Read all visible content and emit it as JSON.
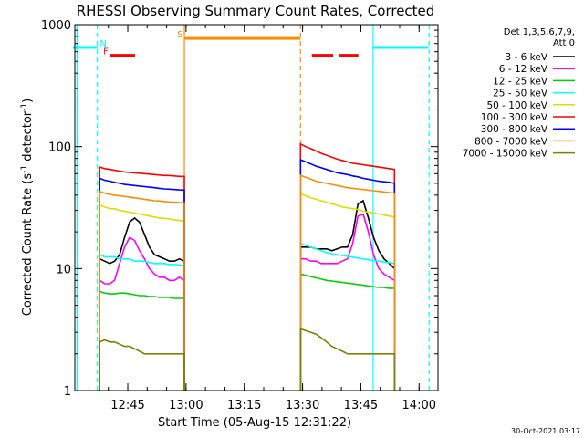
{
  "chart_data": {
    "type": "line",
    "title": "RHESSI Observing Summary Count Rates, Corrected",
    "xlabel": "Start Time (05-Aug-15 12:31:22)",
    "ylabel_main": "Corrected Count Rate (s",
    "ylabel_sup1": "-1",
    "ylabel_mid": " detector",
    "ylabel_sup2": "-1",
    "ylabel_end": ")",
    "ylim": [
      1,
      1000
    ],
    "y_scale": "log",
    "xlim_minutes": [
      0,
      93.5
    ],
    "x_ticks": [
      {
        "label": "12:45",
        "min": 13.63
      },
      {
        "label": "13:00",
        "min": 28.63
      },
      {
        "label": "13:15",
        "min": 43.63
      },
      {
        "label": "13:30",
        "min": 58.63
      },
      {
        "label": "13:45",
        "min": 73.63
      },
      {
        "label": "14:00",
        "min": 88.63
      }
    ],
    "y_ticks": [
      {
        "label": "1",
        "v": 1
      },
      {
        "label": "10",
        "v": 10
      },
      {
        "label": "100",
        "v": 100
      },
      {
        "label": "1000",
        "v": 1000
      }
    ],
    "legend_header": [
      "Det 1,3,5,6,7,9,",
      "Att 0"
    ],
    "legend_placement": "right",
    "timestamp": "30-Oct-2021 03:17",
    "series": [
      {
        "name": "3 - 6 keV",
        "color": "#000000",
        "seg1": [
          12,
          11.5,
          11,
          11.5,
          13,
          18,
          24,
          26,
          24,
          19,
          15,
          13,
          12.5,
          12,
          11.5,
          11.5,
          12,
          11.5
        ],
        "seg2": [
          15,
          15,
          15,
          14.5,
          14.5,
          14.5,
          14,
          14.5,
          15,
          15,
          19,
          34,
          36,
          26,
          18,
          14,
          12,
          11,
          10
        ]
      },
      {
        "name": "6 - 12 keV",
        "color": "#ff00ff",
        "seg1": [
          8,
          7.5,
          7.5,
          8,
          11,
          15,
          18,
          17,
          14,
          12,
          10,
          9,
          8.5,
          8.5,
          8,
          8,
          8.5,
          8
        ],
        "seg2": [
          12,
          12,
          11.5,
          11.5,
          11,
          11,
          11,
          11,
          11.5,
          12,
          16,
          27,
          28,
          20,
          13,
          10,
          9,
          8.5,
          8
        ]
      },
      {
        "name": "12 - 25 keV",
        "color": "#00d000",
        "seg1": [
          6.5,
          6.3,
          6.2,
          6.2,
          6.3,
          6.3,
          6.2,
          6.1,
          6,
          6,
          5.9,
          5.9,
          5.8,
          5.8,
          5.8,
          5.7,
          5.7,
          5.7
        ],
        "seg2": [
          9,
          8.8,
          8.6,
          8.4,
          8.2,
          8,
          7.9,
          7.8,
          7.7,
          7.6,
          7.5,
          7.4,
          7.3,
          7.2,
          7.1,
          7,
          7,
          6.9,
          6.9
        ]
      },
      {
        "name": "25 - 50 keV",
        "color": "#00ffff",
        "seg1": [
          13,
          12.5,
          12.5,
          12.5,
          12,
          12,
          12,
          11.5,
          11.5,
          11.5,
          11.2,
          11,
          11,
          11,
          10.8,
          10.8,
          10.7,
          10.6
        ],
        "seg2": [
          16,
          15.5,
          15,
          14.5,
          14,
          13.5,
          13.2,
          13,
          12.8,
          12.6,
          12.4,
          12.2,
          12,
          11.8,
          11.6,
          11.5,
          11.3,
          11.2,
          11
        ]
      },
      {
        "name": "50 - 100 keV",
        "color": "#dddd00",
        "seg1": [
          33,
          32,
          31,
          31,
          30,
          29.5,
          29,
          28.5,
          28,
          27.5,
          27,
          26.5,
          26,
          25.8,
          25.5,
          25,
          24.8,
          24.5
        ],
        "seg2": [
          41,
          39.5,
          38,
          37,
          36,
          35,
          34,
          33,
          32,
          31.5,
          31,
          30.5,
          29.5,
          29,
          28.5,
          28,
          27.5,
          27,
          26.5
        ]
      },
      {
        "name": "100 - 300 keV",
        "color": "#ff0000",
        "seg1": [
          68,
          66,
          65,
          64,
          63,
          62,
          61.5,
          61,
          60.5,
          60,
          59.5,
          59,
          58.5,
          58,
          58,
          57.5,
          57,
          57
        ],
        "seg2": [
          105,
          100,
          96,
          92,
          88,
          85,
          82,
          79,
          77,
          75,
          73,
          72,
          71,
          70,
          69,
          68,
          67,
          66,
          65
        ]
      },
      {
        "name": "300 - 800 keV",
        "color": "#0000ff",
        "seg1": [
          55,
          53,
          52,
          51,
          50,
          49,
          48.5,
          48,
          47.5,
          47,
          46.5,
          46,
          45.5,
          45,
          44.8,
          44.5,
          44.2,
          44
        ],
        "seg2": [
          78,
          75,
          72,
          69,
          67,
          65,
          63,
          61,
          60,
          59,
          57.5,
          56.5,
          55,
          54,
          53,
          52,
          51.5,
          51,
          50
        ]
      },
      {
        "name": "800 - 7000 keV",
        "color": "#ff8c00",
        "seg1": [
          43,
          41.5,
          40.5,
          40,
          39.5,
          39,
          38.5,
          38,
          37.5,
          37,
          36.5,
          36,
          35.8,
          35.5,
          35.2,
          35,
          34.8,
          34.5
        ],
        "seg2": [
          58,
          56,
          54,
          52,
          51,
          50,
          49,
          48,
          47,
          46,
          45.5,
          45,
          44.5,
          44,
          43.5,
          43,
          42.5,
          42,
          41.5
        ]
      },
      {
        "name": "7000 - 15000 keV",
        "color": "#808000",
        "seg1": [
          2.5,
          2.6,
          2.5,
          2.5,
          2.4,
          2.3,
          2.3,
          2.2,
          2.1,
          2,
          2,
          2,
          2,
          2,
          2,
          2,
          2,
          2
        ],
        "seg2": [
          3.2,
          3.1,
          3,
          2.9,
          2.7,
          2.5,
          2.3,
          2.2,
          2.1,
          2,
          2,
          2,
          2,
          2,
          2,
          2,
          2,
          2,
          2
        ]
      }
    ],
    "segments": {
      "seg1_x": [
        6.4,
        28.2
      ],
      "seg2_x": [
        58.1,
        82.3
      ]
    },
    "flags": [
      {
        "label": "F",
        "color": "#ff0000",
        "x": [
          9,
          15.5
        ],
        "level": 560,
        "label_x": 8
      },
      {
        "label": "",
        "color": "#ff0000",
        "x": [
          61,
          66.5
        ],
        "level": 560
      },
      {
        "label": "",
        "color": "#ff0000",
        "x": [
          68,
          73
        ],
        "level": 560
      },
      {
        "label": "S",
        "color": "#ff8c00",
        "x": [
          28.2,
          58.1
        ],
        "level": 770,
        "label_x": 27.1
      },
      {
        "label": "N",
        "color": "#00ffff",
        "x": [
          -1,
          5.8
        ],
        "level": 650,
        "label_x": 7.3
      },
      {
        "label": "",
        "color": "#00ffff",
        "x": [
          76.8,
          91
        ],
        "level": 650
      }
    ],
    "vlines": [
      {
        "color": "#00ffff",
        "x": 0.6,
        "style": "solid"
      },
      {
        "color": "#00ffff",
        "x": 5.8,
        "style": "dashed"
      },
      {
        "color": "#00ffff",
        "x": 76.8,
        "style": "solid"
      },
      {
        "color": "#00ffff",
        "x": 91.2,
        "style": "dashed"
      },
      {
        "color": "#ff8c00",
        "x": 28.2,
        "style": "solid"
      },
      {
        "color": "#ff8c00",
        "x": 58.1,
        "style": "dashed"
      }
    ]
  }
}
